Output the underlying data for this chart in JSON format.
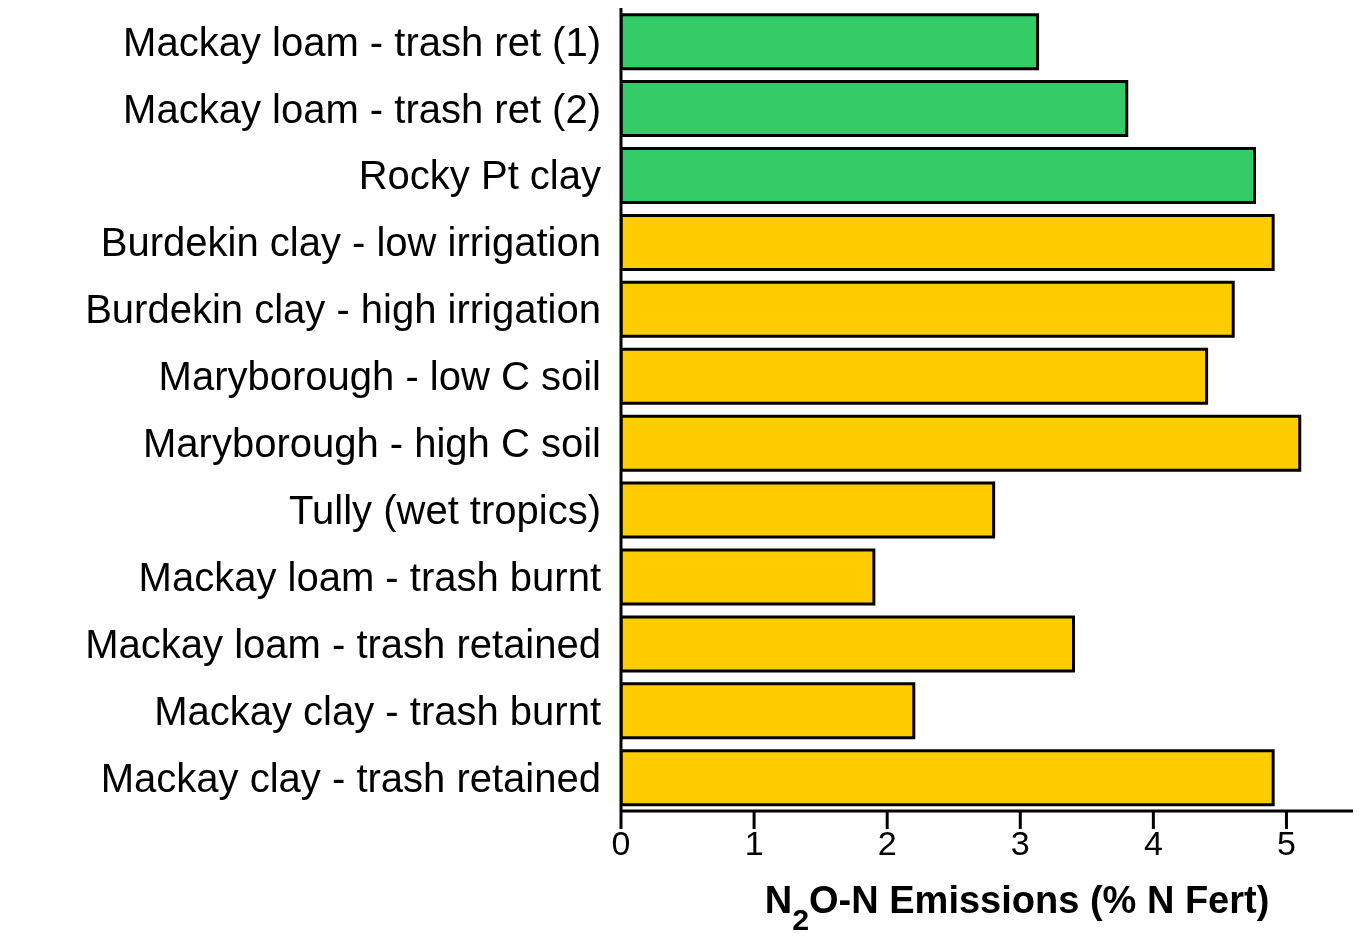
{
  "chart_data": {
    "type": "bar",
    "orientation": "horizontal",
    "xlabel": "N$_{2}$O-N Emissions (% N Fert)",
    "categories": [
      "Mackay loam - trash ret (1)",
      "Mackay loam - trash ret (2)",
      "Rocky Pt clay",
      "Burdekin clay - low irrigation",
      "Burdekin clay - high irrigation",
      "Maryborough - low C soil",
      "Maryborough - high C soil",
      "Tully (wet tropics)",
      "Mackay loam - trash burnt",
      "Mackay loam - trash retained",
      "Mackay clay - trash burnt",
      "Mackay clay - trash retained"
    ],
    "values": [
      3.13,
      3.8,
      4.76,
      4.9,
      4.6,
      4.4,
      5.1,
      2.8,
      1.9,
      3.4,
      2.2,
      4.9
    ],
    "colors": [
      "#33cc66",
      "#33cc66",
      "#33cc66",
      "#ffcc00",
      "#ffcc00",
      "#ffcc00",
      "#ffcc00",
      "#ffcc00",
      "#ffcc00",
      "#ffcc00",
      "#ffcc00",
      "#ffcc00"
    ],
    "xlim": [
      0,
      5.5
    ],
    "xticks": [
      0,
      1,
      2,
      3,
      4,
      5
    ]
  }
}
